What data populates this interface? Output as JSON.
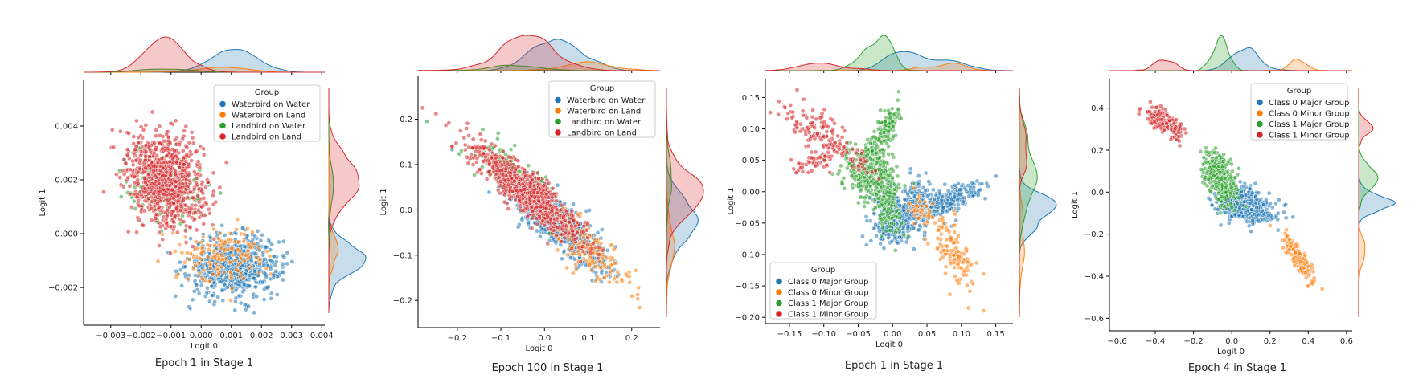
{
  "colors": {
    "blue": "#1f77b4",
    "orange": "#ff7f0e",
    "green": "#2ca02c",
    "red": "#d62728"
  },
  "chart_data": [
    {
      "type": "scatter",
      "caption": "Epoch 1 in Stage 1",
      "xlabel": "Logit 0",
      "ylabel": "Logit 1",
      "xlim": [
        -0.0039,
        0.0041
      ],
      "ylim": [
        -0.0034,
        0.0057
      ],
      "xticks": [
        -0.003,
        -0.002,
        -0.001,
        0.0,
        0.001,
        0.002,
        0.003,
        0.004
      ],
      "xtick_labels": [
        "−0.003",
        "−0.002",
        "−0.001",
        "0.000",
        "0.001",
        "0.002",
        "0.003",
        "0.004"
      ],
      "yticks": [
        -0.002,
        0.0,
        0.002,
        0.004
      ],
      "ytick_labels": [
        "−0.002",
        "0.000",
        "0.002",
        "0.004"
      ],
      "legend": {
        "title": "Group",
        "placement": "upper-right"
      },
      "marginals": true,
      "series": [
        {
          "name": "Waterbird on Water",
          "color": "blue",
          "n": 700,
          "clusters": [
            {
              "cx": 0.0011,
              "cy": -0.0012,
              "sx": 0.00075,
              "sy": 0.00055,
              "rho": 0.0,
              "w": 1
            }
          ]
        },
        {
          "name": "Waterbird on Land",
          "color": "orange",
          "n": 160,
          "clusters": [
            {
              "cx": 0.0008,
              "cy": -0.0008,
              "sx": 0.0007,
              "sy": 0.0005,
              "rho": 0.0,
              "w": 1
            }
          ]
        },
        {
          "name": "Landbird on Water",
          "color": "green",
          "n": 110,
          "clusters": [
            {
              "cx": -0.0011,
              "cy": 0.0017,
              "sx": 0.0007,
              "sy": 0.0007,
              "rho": -0.2,
              "w": 1
            }
          ]
        },
        {
          "name": "Landbird on Land",
          "color": "red",
          "n": 900,
          "clusters": [
            {
              "cx": -0.0012,
              "cy": 0.002,
              "sx": 0.00065,
              "sy": 0.00085,
              "rho": -0.2,
              "w": 1
            }
          ]
        }
      ]
    },
    {
      "type": "scatter",
      "caption": "Epoch 100 in Stage 1",
      "xlabel": "Logit 0",
      "ylabel": "Logit 1",
      "xlim": [
        -0.29,
        0.265
      ],
      "ylim": [
        -0.26,
        0.295
      ],
      "xticks": [
        -0.2,
        -0.1,
        0.0,
        0.1,
        0.2
      ],
      "xtick_labels": [
        "−0.2",
        "−0.1",
        "0.0",
        "0.1",
        "0.2"
      ],
      "yticks": [
        -0.2,
        -0.1,
        0.0,
        0.1,
        0.2
      ],
      "ytick_labels": [
        "−0.2",
        "−0.1",
        "0.0",
        "0.1",
        "0.2"
      ],
      "legend": {
        "title": "Group",
        "placement": "upper-right"
      },
      "marginals": true,
      "series": [
        {
          "name": "Waterbird on Water",
          "color": "blue",
          "n": 750,
          "clusters": [
            {
              "cx": 0.03,
              "cy": -0.03,
              "sx": 0.055,
              "sy": 0.05,
              "rho": -0.85,
              "w": 1
            }
          ]
        },
        {
          "name": "Waterbird on Land",
          "color": "orange",
          "n": 180,
          "clusters": [
            {
              "cx": 0.09,
              "cy": -0.08,
              "sx": 0.05,
              "sy": 0.045,
              "rho": -0.8,
              "w": 1
            }
          ]
        },
        {
          "name": "Landbird on Water",
          "color": "green",
          "n": 120,
          "clusters": [
            {
              "cx": -0.07,
              "cy": 0.07,
              "sx": 0.06,
              "sy": 0.05,
              "rho": -0.8,
              "w": 1
            }
          ]
        },
        {
          "name": "Landbird on Land",
          "color": "red",
          "n": 900,
          "clusters": [
            {
              "cx": -0.04,
              "cy": 0.04,
              "sx": 0.06,
              "sy": 0.05,
              "rho": -0.88,
              "w": 1
            }
          ]
        }
      ]
    },
    {
      "type": "scatter",
      "caption": "Epoch 1 in Stage 1",
      "xlabel": "Logit 0",
      "ylabel": "Logit 1",
      "xlim": [
        -0.185,
        0.175
      ],
      "ylim": [
        -0.21,
        0.18
      ],
      "xticks": [
        -0.15,
        -0.1,
        -0.05,
        0.0,
        0.05,
        0.1,
        0.15
      ],
      "xtick_labels": [
        "−0.15",
        "−0.10",
        "−0.05",
        "0.00",
        "0.05",
        "0.10",
        "0.15"
      ],
      "yticks": [
        -0.2,
        -0.15,
        -0.1,
        -0.05,
        0.0,
        0.05,
        0.1,
        0.15
      ],
      "ytick_labels": [
        "−0.20",
        "−0.15",
        "−0.10",
        "−0.05",
        "0.00",
        "0.05",
        "0.10",
        "0.15"
      ],
      "legend": {
        "title": "Group",
        "placement": "lower-left"
      },
      "marginals": true,
      "series": [
        {
          "name": "Class 0 Major Group",
          "color": "blue",
          "n": 650,
          "clusters": [
            {
              "cx": 0.02,
              "cy": -0.03,
              "sx": 0.025,
              "sy": 0.022,
              "rho": 0.1,
              "w": 0.55
            },
            {
              "cx": 0.085,
              "cy": -0.01,
              "sx": 0.025,
              "sy": 0.012,
              "rho": 0.7,
              "w": 0.3
            },
            {
              "cx": 0.0,
              "cy": -0.06,
              "sx": 0.015,
              "sy": 0.012,
              "rho": 0.3,
              "w": 0.15
            }
          ]
        },
        {
          "name": "Class 0 Minor Group",
          "color": "orange",
          "n": 160,
          "clusters": [
            {
              "cx": 0.09,
              "cy": -0.1,
              "sx": 0.018,
              "sy": 0.035,
              "rho": -0.7,
              "w": 0.75
            },
            {
              "cx": 0.04,
              "cy": -0.03,
              "sx": 0.012,
              "sy": 0.012,
              "rho": -0.4,
              "w": 0.25
            }
          ]
        },
        {
          "name": "Class 1 Major Group",
          "color": "green",
          "n": 600,
          "clusters": [
            {
              "cx": -0.035,
              "cy": 0.03,
              "sx": 0.02,
              "sy": 0.02,
              "rho": -0.2,
              "w": 0.45
            },
            {
              "cx": -0.015,
              "cy": 0.09,
              "sx": 0.015,
              "sy": 0.025,
              "rho": 0.8,
              "w": 0.3
            },
            {
              "cx": -0.01,
              "cy": -0.02,
              "sx": 0.012,
              "sy": 0.025,
              "rho": -0.2,
              "w": 0.25
            }
          ]
        },
        {
          "name": "Class 1 Minor Group",
          "color": "red",
          "n": 200,
          "clusters": [
            {
              "cx": -0.11,
              "cy": 0.1,
              "sx": 0.025,
              "sy": 0.02,
              "rho": -0.7,
              "w": 0.55
            },
            {
              "cx": -0.11,
              "cy": 0.05,
              "sx": 0.02,
              "sy": 0.015,
              "rho": 0.7,
              "w": 0.3
            },
            {
              "cx": -0.05,
              "cy": 0.05,
              "sx": 0.015,
              "sy": 0.015,
              "rho": -0.7,
              "w": 0.15
            }
          ]
        }
      ]
    },
    {
      "type": "scatter",
      "caption": "Epoch 4 in Stage 1",
      "xlabel": "Logit 0",
      "ylabel": "Logit 1",
      "xlim": [
        -0.64,
        0.63
      ],
      "ylim": [
        -0.66,
        0.54
      ],
      "xticks": [
        -0.6,
        -0.4,
        -0.2,
        0.0,
        0.2,
        0.4,
        0.6
      ],
      "xtick_labels": [
        "−0.6",
        "−0.4",
        "−0.2",
        "0.0",
        "0.2",
        "0.4",
        "0.6"
      ],
      "yticks": [
        -0.6,
        -0.4,
        -0.2,
        0.0,
        0.2,
        0.4
      ],
      "ytick_labels": [
        "−0.6",
        "−0.4",
        "−0.2",
        "0.0",
        "0.2",
        "0.4"
      ],
      "legend": {
        "title": "Group",
        "placement": "upper-right"
      },
      "marginals": true,
      "series": [
        {
          "name": "Class 0 Major Group",
          "color": "blue",
          "n": 550,
          "clusters": [
            {
              "cx": 0.07,
              "cy": -0.06,
              "sx": 0.07,
              "sy": 0.04,
              "rho": -0.3,
              "w": 1
            }
          ]
        },
        {
          "name": "Class 0 Minor Group",
          "color": "orange",
          "n": 160,
          "clusters": [
            {
              "cx": 0.35,
              "cy": -0.32,
              "sx": 0.04,
              "sy": 0.06,
              "rho": -0.85,
              "w": 1
            }
          ]
        },
        {
          "name": "Class 1 Major Group",
          "color": "green",
          "n": 450,
          "clusters": [
            {
              "cx": -0.06,
              "cy": 0.07,
              "sx": 0.04,
              "sy": 0.06,
              "rho": -0.5,
              "w": 1
            }
          ]
        },
        {
          "name": "Class 1 Minor Group",
          "color": "red",
          "n": 200,
          "clusters": [
            {
              "cx": -0.35,
              "cy": 0.33,
              "sx": 0.05,
              "sy": 0.035,
              "rho": -0.7,
              "w": 1
            }
          ]
        }
      ]
    }
  ]
}
